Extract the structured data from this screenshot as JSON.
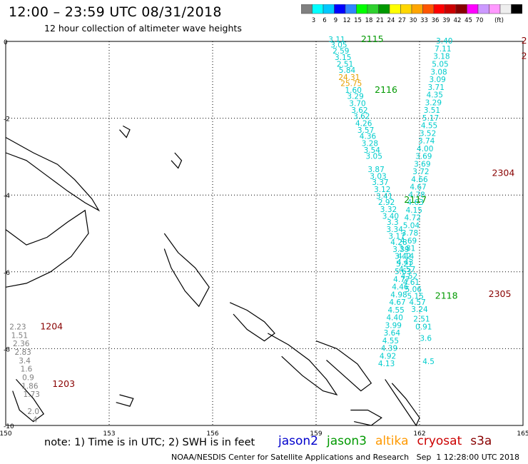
{
  "title": "12:00 – 23:59 UTC 08/31/2018",
  "subtitle": "12 hour collection of altimeter wave heights",
  "colorbar": {
    "colors": [
      "#808080",
      "#00ffff",
      "#00c8ff",
      "#0000ff",
      "#2f86ff",
      "#00ff00",
      "#2fd12f",
      "#009900",
      "#ffff00",
      "#ffd700",
      "#ffa500",
      "#ff5500",
      "#ff0000",
      "#cc0000",
      "#880000",
      "#ff00ff",
      "#cc99ff",
      "#ff99ff",
      "#eeeeee",
      "#000000"
    ],
    "labels": [
      "3",
      "6",
      "9",
      "12",
      "15",
      "18",
      "21",
      "24",
      "27",
      "30",
      "33",
      "36",
      "39",
      "42",
      "45",
      "70"
    ],
    "unit": "(ft)"
  },
  "axes": {
    "lon_labels": [
      "150",
      "153",
      "156",
      "159",
      "162",
      "165"
    ],
    "lat_labels": [
      "0",
      "-2",
      "-4",
      "-6",
      "-8",
      "-10"
    ],
    "lon_range": [
      150,
      165
    ],
    "lat_range": [
      -10,
      0
    ]
  },
  "tracks": [
    {
      "color": "#00cccc",
      "points": [
        [
          159.6,
          -0.02,
          "3.11"
        ],
        [
          159.66,
          -0.16,
          "3.05"
        ],
        [
          159.72,
          -0.32,
          "2.59"
        ],
        [
          159.78,
          -0.48,
          "3.15"
        ],
        [
          159.84,
          -0.66,
          "2.51"
        ],
        [
          159.9,
          -0.82,
          "5.84"
        ],
        [
          159.96,
          -1.0,
          "24.31"
        ],
        [
          160.02,
          -1.16,
          "25.75"
        ],
        [
          160.08,
          -1.34,
          "1.60"
        ],
        [
          160.14,
          -1.5,
          "3.29"
        ],
        [
          160.2,
          -1.68,
          "3.70"
        ],
        [
          160.26,
          -1.86,
          "3.62"
        ],
        [
          160.32,
          -2.02,
          "3.62"
        ],
        [
          160.38,
          -2.2,
          "4.26"
        ],
        [
          160.44,
          -2.38,
          "3.57"
        ],
        [
          160.5,
          -2.54,
          "4.36"
        ],
        [
          160.56,
          -2.72,
          "3.28"
        ],
        [
          160.62,
          -2.9,
          "3.54"
        ],
        [
          160.68,
          -3.06,
          "3.05"
        ],
        [
          160.74,
          -3.4,
          "3.87"
        ],
        [
          160.8,
          -3.58,
          "3.03"
        ],
        [
          160.86,
          -3.74,
          "3.37"
        ],
        [
          160.92,
          -3.92,
          "3.12"
        ],
        [
          160.98,
          -4.1,
          "3.41"
        ],
        [
          161.04,
          -4.26,
          "2.92"
        ],
        [
          161.1,
          -4.44,
          "3.32"
        ],
        [
          161.16,
          -4.62,
          "3.40"
        ],
        [
          161.22,
          -4.78,
          "3.3"
        ],
        [
          161.28,
          -4.96,
          "3.34"
        ],
        [
          161.34,
          -5.14,
          "3.17"
        ],
        [
          161.4,
          -5.3,
          "4.28"
        ],
        [
          161.46,
          -5.48,
          "3.39"
        ],
        [
          161.52,
          -5.66,
          "3.42"
        ],
        [
          161.58,
          -5.82,
          "4.43"
        ],
        [
          161.64,
          -6.0,
          "4.57"
        ],
        [
          161.7,
          -6.18,
          "4.52"
        ],
        [
          161.76,
          -6.34,
          "4.61"
        ],
        [
          161.82,
          -6.52,
          "5.06"
        ],
        [
          161.88,
          -6.7,
          "5.15"
        ],
        [
          161.94,
          -6.86,
          "4.57"
        ],
        [
          162.0,
          -7.04,
          "3.24"
        ],
        [
          162.06,
          -7.3,
          "2.51"
        ],
        [
          162.12,
          -7.5,
          "0.91"
        ],
        [
          162.18,
          -7.8,
          "3.6"
        ],
        [
          162.26,
          -8.4,
          "4.5"
        ]
      ]
    },
    {
      "color": "#00cccc",
      "points": [
        [
          162.72,
          -0.06,
          "3.40"
        ],
        [
          162.68,
          -0.26,
          "7.11"
        ],
        [
          162.64,
          -0.46,
          "3.18"
        ],
        [
          162.6,
          -0.66,
          "5.05"
        ],
        [
          162.56,
          -0.86,
          "3.08"
        ],
        [
          162.52,
          -1.06,
          "3.09"
        ],
        [
          162.48,
          -1.26,
          "3.71"
        ],
        [
          162.44,
          -1.46,
          "4.35"
        ],
        [
          162.4,
          -1.66,
          "3.29"
        ],
        [
          162.36,
          -1.86,
          "3.51"
        ],
        [
          162.32,
          -2.06,
          "5.17"
        ],
        [
          162.28,
          -2.26,
          "4.55"
        ],
        [
          162.24,
          -2.46,
          "3.52"
        ],
        [
          162.2,
          -2.66,
          "3.74"
        ],
        [
          162.16,
          -2.86,
          "4.00"
        ],
        [
          162.12,
          -3.06,
          "3.69"
        ],
        [
          162.08,
          -3.26,
          "3.69"
        ],
        [
          162.04,
          -3.46,
          "3.72"
        ],
        [
          162.0,
          -3.66,
          "4.66"
        ],
        [
          161.96,
          -3.86,
          "4.67"
        ],
        [
          161.92,
          -4.06,
          "4.78"
        ],
        [
          161.88,
          -4.26,
          "4.63"
        ],
        [
          161.84,
          -4.46,
          "4.15"
        ],
        [
          161.8,
          -4.66,
          "4.72"
        ],
        [
          161.76,
          -4.86,
          "5.04"
        ],
        [
          161.72,
          -5.06,
          "3.78"
        ],
        [
          161.68,
          -5.26,
          "4.69"
        ],
        [
          161.64,
          -5.46,
          "3.81"
        ],
        [
          161.6,
          -5.66,
          "4.14"
        ],
        [
          161.56,
          -5.86,
          "5.21"
        ],
        [
          161.52,
          -6.06,
          "5.63"
        ],
        [
          161.48,
          -6.26,
          "4.77"
        ],
        [
          161.44,
          -6.46,
          "4.46"
        ],
        [
          161.4,
          -6.66,
          "4.98"
        ],
        [
          161.36,
          -6.86,
          "4.67"
        ],
        [
          161.32,
          -7.06,
          "4.55"
        ],
        [
          161.28,
          -7.26,
          "4.40"
        ],
        [
          161.24,
          -7.46,
          "3.99"
        ],
        [
          161.2,
          -7.66,
          "3.64"
        ],
        [
          161.16,
          -7.86,
          "4.55"
        ],
        [
          161.12,
          -8.06,
          "4.39"
        ],
        [
          161.08,
          -8.26,
          "4.92"
        ],
        [
          161.04,
          -8.46,
          "4.13"
        ]
      ]
    },
    {
      "color": "#808080",
      "points": [
        [
          150.35,
          -7.5,
          "2.23"
        ],
        [
          150.4,
          -7.72,
          "1.51"
        ],
        [
          150.45,
          -7.94,
          "2.36"
        ],
        [
          150.5,
          -8.16,
          "2.83"
        ],
        [
          150.55,
          -8.38,
          "3.4"
        ],
        [
          150.6,
          -8.6,
          "1.6"
        ],
        [
          150.65,
          -8.82,
          "0.9"
        ],
        [
          150.7,
          -9.04,
          "1.86"
        ],
        [
          150.75,
          -9.26,
          "1.73"
        ],
        [
          150.8,
          -9.7,
          "2.0"
        ],
        [
          150.85,
          -9.92,
          "4"
        ]
      ]
    }
  ],
  "track_labels": [
    {
      "text": "2115",
      "lon": 160.3,
      "lat": -0.02,
      "color": "#009900"
    },
    {
      "text": "2116",
      "lon": 160.7,
      "lat": -1.34,
      "color": "#009900"
    },
    {
      "text": "2117",
      "lon": 161.55,
      "lat": -4.2,
      "color": "#009900"
    },
    {
      "text": "2118",
      "lon": 162.45,
      "lat": -6.7,
      "color": "#009900"
    },
    {
      "text": "2304",
      "lon": 164.1,
      "lat": -3.5,
      "color": "#880000"
    },
    {
      "text": "2305",
      "lon": 164.0,
      "lat": -6.65,
      "color": "#880000"
    },
    {
      "text": "1204",
      "lon": 151.0,
      "lat": -7.5,
      "color": "#880000"
    },
    {
      "text": "1203",
      "lon": 151.35,
      "lat": -9.0,
      "color": "#880000"
    },
    {
      "text": "2",
      "lon": 164.95,
      "lat": -0.06,
      "color": "#880000"
    },
    {
      "text": "2",
      "lon": 164.95,
      "lat": -0.46,
      "color": "#880000"
    }
  ],
  "note": "note: 1) Time is in UTC; 2) SWH is in feet",
  "missions": [
    {
      "name": "jason2",
      "color": "#0000cc"
    },
    {
      "name": "jason3",
      "color": "#009900"
    },
    {
      "name": "altika",
      "color": "#ff9900"
    },
    {
      "name": "cryosat",
      "color": "#cc0000"
    },
    {
      "name": "s3a",
      "color": "#880000"
    }
  ],
  "credit": "NOAA/NESDIS Center for Satellite Applications and Research   Sep  1 12:28:00 UTC 2018"
}
